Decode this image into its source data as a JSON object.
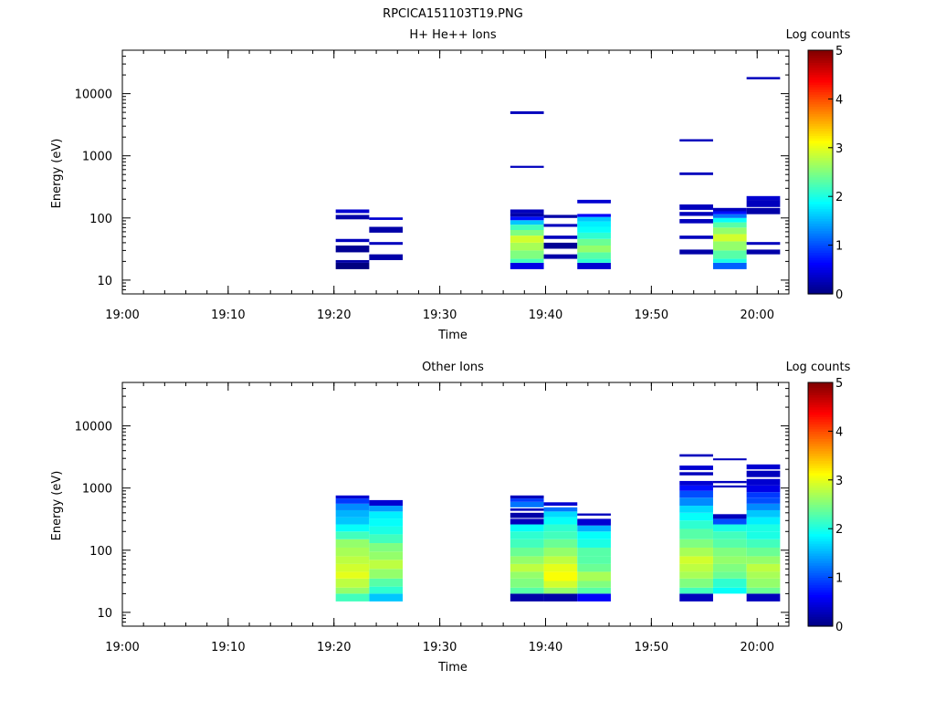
{
  "figure_title": "RPCICA151103T19.PNG",
  "chart_data": [
    {
      "type": "heatmap",
      "title": "H+ He++ Ions",
      "xlabel": "Time",
      "ylabel": "Energy (eV)",
      "x_range": [
        "19:00",
        "20:03"
      ],
      "x_ticks": [
        "19:00",
        "19:10",
        "19:20",
        "19:30",
        "19:40",
        "19:50",
        "20:00"
      ],
      "y_scale": "log",
      "y_range": [
        6,
        50000
      ],
      "y_ticks": [
        "10",
        "100",
        "1000",
        "10000"
      ],
      "colorbar": {
        "label": "Log counts",
        "range": [
          0,
          5
        ],
        "ticks": [
          "0",
          "1",
          "2",
          "3",
          "4",
          "5"
        ],
        "colormap": "jet"
      },
      "columns": [
        {
          "t_start": "19:20:10",
          "t_end": "19:23:20",
          "cells": [
            [
              15,
              19,
              0
            ],
            [
              19,
              21,
              0.2
            ],
            [
              28,
              36,
              0.1
            ],
            [
              41,
              46,
              0.3
            ],
            [
              95,
              112,
              0.2
            ],
            [
              120,
              137,
              0.4
            ]
          ]
        },
        {
          "t_start": "19:23:20",
          "t_end": "19:26:30",
          "cells": [
            [
              21,
              26,
              0.2
            ],
            [
              37,
              41,
              0.3
            ],
            [
              58,
              72,
              0.2
            ],
            [
              93,
              102,
              0.4
            ]
          ]
        },
        {
          "t_start": "19:36:40",
          "t_end": "19:39:50",
          "cells": [
            [
              15,
              19,
              0.5
            ],
            [
              19,
              22,
              2.2
            ],
            [
              22,
              30,
              2.5
            ],
            [
              30,
              40,
              2.7
            ],
            [
              40,
              52,
              2.9
            ],
            [
              52,
              64,
              2.5
            ],
            [
              64,
              78,
              2.2
            ],
            [
              78,
              92,
              1.6
            ],
            [
              92,
              105,
              0.7
            ],
            [
              105,
              120,
              0.2
            ],
            [
              120,
              137,
              0.3
            ],
            [
              640,
              690,
              0.3
            ],
            [
              4700,
              5200,
              0.3
            ]
          ]
        },
        {
          "t_start": "19:39:50",
          "t_end": "19:43:00",
          "cells": [
            [
              22,
              26,
              0.2
            ],
            [
              32,
              40,
              0.1
            ],
            [
              46,
              52,
              0.3
            ],
            [
              72,
              80,
              0.3
            ],
            [
              100,
              112,
              0.2
            ]
          ]
        },
        {
          "t_start": "19:43:00",
          "t_end": "19:46:10",
          "cells": [
            [
              15,
              19,
              0.4
            ],
            [
              19,
              22,
              2.1
            ],
            [
              22,
              28,
              2.3
            ],
            [
              28,
              36,
              2.6
            ],
            [
              36,
              46,
              2.4
            ],
            [
              46,
              58,
              2.1
            ],
            [
              58,
              72,
              1.9
            ],
            [
              72,
              88,
              1.8
            ],
            [
              88,
              104,
              1.6
            ],
            [
              104,
              116,
              0.6
            ],
            [
              172,
              196,
              0.4
            ]
          ]
        },
        {
          "t_start": "19:52:40",
          "t_end": "19:55:50",
          "cells": [
            [
              26,
              31,
              0.2
            ],
            [
              46,
              52,
              0.3
            ],
            [
              82,
              96,
              0.3
            ],
            [
              108,
              125,
              0.3
            ],
            [
              135,
              165,
              0.3
            ],
            [
              490,
              540,
              0.3
            ],
            [
              1700,
              1850,
              0.3
            ]
          ]
        },
        {
          "t_start": "19:55:50",
          "t_end": "19:59:00",
          "cells": [
            [
              15,
              19,
              1.1
            ],
            [
              19,
              22,
              2.0
            ],
            [
              22,
              30,
              2.3
            ],
            [
              30,
              42,
              2.6
            ],
            [
              42,
              55,
              2.9
            ],
            [
              55,
              70,
              2.6
            ],
            [
              70,
              85,
              2.3
            ],
            [
              85,
              100,
              1.9
            ],
            [
              100,
              115,
              1.2
            ],
            [
              115,
              128,
              0.7
            ],
            [
              128,
              145,
              0.3
            ]
          ]
        },
        {
          "t_start": "19:59:00",
          "t_end": "20:02:10",
          "cells": [
            [
              26,
              31,
              0.2
            ],
            [
              37,
              41,
              0.3
            ],
            [
              115,
              145,
              0.2
            ],
            [
              150,
              195,
              0.3
            ],
            [
              195,
              225,
              0.4
            ],
            [
              17000,
              18500,
              0.3
            ]
          ]
        }
      ]
    },
    {
      "type": "heatmap",
      "title": "Other Ions",
      "xlabel": "Time",
      "ylabel": "Energy (eV)",
      "x_range": [
        "19:00",
        "20:03"
      ],
      "x_ticks": [
        "19:00",
        "19:10",
        "19:20",
        "19:30",
        "19:40",
        "19:50",
        "20:00"
      ],
      "y_scale": "log",
      "y_range": [
        6,
        50000
      ],
      "y_ticks": [
        "10",
        "100",
        "1000",
        "10000"
      ],
      "colorbar": {
        "label": "Log counts",
        "range": [
          0,
          5
        ],
        "ticks": [
          "0",
          "1",
          "2",
          "3",
          "4",
          "5"
        ],
        "colormap": "jet"
      },
      "columns": [
        {
          "t_start": "19:20:10",
          "t_end": "19:23:20",
          "cells": [
            [
              15,
              20,
              2.2
            ],
            [
              20,
              25,
              2.6
            ],
            [
              25,
              35,
              2.8
            ],
            [
              35,
              45,
              3.0
            ],
            [
              45,
              60,
              2.9
            ],
            [
              60,
              80,
              2.8
            ],
            [
              80,
              110,
              2.7
            ],
            [
              110,
              150,
              2.6
            ],
            [
              150,
              200,
              2.2
            ],
            [
              200,
              260,
              1.9
            ],
            [
              260,
              340,
              1.6
            ],
            [
              340,
              440,
              1.5
            ],
            [
              440,
              560,
              1.3
            ],
            [
              560,
              680,
              0.9
            ],
            [
              680,
              760,
              0.4
            ]
          ]
        },
        {
          "t_start": "19:23:20",
          "t_end": "19:26:30",
          "cells": [
            [
              15,
              20,
              1.6
            ],
            [
              20,
              26,
              2.1
            ],
            [
              26,
              35,
              2.3
            ],
            [
              35,
              50,
              2.6
            ],
            [
              50,
              70,
              2.8
            ],
            [
              70,
              95,
              2.6
            ],
            [
              95,
              130,
              2.5
            ],
            [
              130,
              180,
              2.2
            ],
            [
              180,
              240,
              2.0
            ],
            [
              240,
              320,
              1.9
            ],
            [
              320,
              420,
              1.8
            ],
            [
              420,
              520,
              1.4
            ],
            [
              520,
              640,
              0.4
            ]
          ]
        },
        {
          "t_start": "19:36:40",
          "t_end": "19:39:50",
          "cells": [
            [
              15,
              20,
              0.2
            ],
            [
              20,
              25,
              2.3
            ],
            [
              25,
              35,
              2.5
            ],
            [
              35,
              45,
              2.6
            ],
            [
              45,
              60,
              2.8
            ],
            [
              60,
              80,
              2.6
            ],
            [
              80,
              110,
              2.4
            ],
            [
              110,
              150,
              2.2
            ],
            [
              150,
              200,
              2.1
            ],
            [
              200,
              260,
              1.9
            ],
            [
              260,
              320,
              0.3
            ],
            [
              330,
              400,
              0.2
            ],
            [
              430,
              470,
              0.3
            ],
            [
              490,
              600,
              1.2
            ],
            [
              600,
              680,
              0.9
            ],
            [
              680,
              760,
              0.3
            ]
          ]
        },
        {
          "t_start": "19:39:50",
          "t_end": "19:43:00",
          "cells": [
            [
              15,
              20,
              0.2
            ],
            [
              20,
              25,
              2.6
            ],
            [
              25,
              32,
              2.9
            ],
            [
              32,
              45,
              3.1
            ],
            [
              45,
              60,
              3.0
            ],
            [
              60,
              80,
              2.8
            ],
            [
              80,
              110,
              2.6
            ],
            [
              110,
              150,
              2.4
            ],
            [
              150,
              200,
              2.2
            ],
            [
              200,
              260,
              2.1
            ],
            [
              260,
              340,
              1.9
            ],
            [
              340,
              420,
              1.7
            ],
            [
              420,
              490,
              1.2
            ],
            [
              520,
              590,
              0.4
            ]
          ]
        },
        {
          "t_start": "19:43:00",
          "t_end": "19:46:10",
          "cells": [
            [
              15,
              20,
              0.6
            ],
            [
              20,
              25,
              2.3
            ],
            [
              25,
              32,
              2.5
            ],
            [
              32,
              45,
              2.7
            ],
            [
              45,
              60,
              2.4
            ],
            [
              60,
              80,
              2.3
            ],
            [
              80,
              110,
              2.3
            ],
            [
              110,
              150,
              2.0
            ],
            [
              150,
              200,
              1.9
            ],
            [
              200,
              250,
              1.5
            ],
            [
              250,
              320,
              0.4
            ],
            [
              360,
              390,
              0.3
            ]
          ]
        },
        {
          "t_start": "19:52:40",
          "t_end": "19:55:50",
          "cells": [
            [
              15,
              20,
              0.3
            ],
            [
              20,
              25,
              2.2
            ],
            [
              25,
              35,
              2.5
            ],
            [
              35,
              45,
              2.7
            ],
            [
              45,
              60,
              2.8
            ],
            [
              60,
              80,
              2.9
            ],
            [
              80,
              110,
              2.7
            ],
            [
              110,
              150,
              2.5
            ],
            [
              150,
              220,
              2.3
            ],
            [
              220,
              300,
              2.1
            ],
            [
              300,
              400,
              1.9
            ],
            [
              400,
              520,
              1.7
            ],
            [
              520,
              700,
              1.3
            ],
            [
              700,
              900,
              1.0
            ],
            [
              900,
              1100,
              0.7
            ],
            [
              1100,
              1300,
              0.4
            ],
            [
              1600,
              1800,
              0.3
            ],
            [
              1950,
              2300,
              0.4
            ],
            [
              3200,
              3500,
              0.3
            ]
          ]
        },
        {
          "t_start": "19:55:50",
          "t_end": "19:59:00",
          "cells": [
            [
              20,
              25,
              1.9
            ],
            [
              25,
              35,
              2.1
            ],
            [
              35,
              45,
              2.4
            ],
            [
              45,
              60,
              2.5
            ],
            [
              60,
              80,
              2.6
            ],
            [
              80,
              110,
              2.5
            ],
            [
              110,
              150,
              2.3
            ],
            [
              150,
              200,
              2.2
            ],
            [
              200,
              260,
              2.0
            ],
            [
              260,
              320,
              1.0
            ],
            [
              320,
              380,
              0.3
            ],
            [
              1020,
              1100,
              0.3
            ],
            [
              1200,
              1300,
              0.3
            ],
            [
              2800,
              3000,
              0.3
            ]
          ]
        },
        {
          "t_start": "19:59:00",
          "t_end": "20:02:10",
          "cells": [
            [
              15,
              20,
              0.3
            ],
            [
              20,
              25,
              2.4
            ],
            [
              25,
              35,
              2.6
            ],
            [
              35,
              45,
              2.7
            ],
            [
              45,
              60,
              2.8
            ],
            [
              60,
              80,
              2.6
            ],
            [
              80,
              110,
              2.4
            ],
            [
              110,
              150,
              2.2
            ],
            [
              150,
              200,
              2.0
            ],
            [
              200,
              260,
              2.0
            ],
            [
              260,
              340,
              1.8
            ],
            [
              340,
              440,
              1.6
            ],
            [
              440,
              560,
              1.3
            ],
            [
              560,
              700,
              1.0
            ],
            [
              700,
              860,
              0.9
            ],
            [
              860,
              1100,
              0.5
            ],
            [
              1100,
              1400,
              0.4
            ],
            [
              1500,
              1900,
              0.3
            ],
            [
              2000,
              2400,
              0.4
            ]
          ]
        }
      ]
    }
  ]
}
